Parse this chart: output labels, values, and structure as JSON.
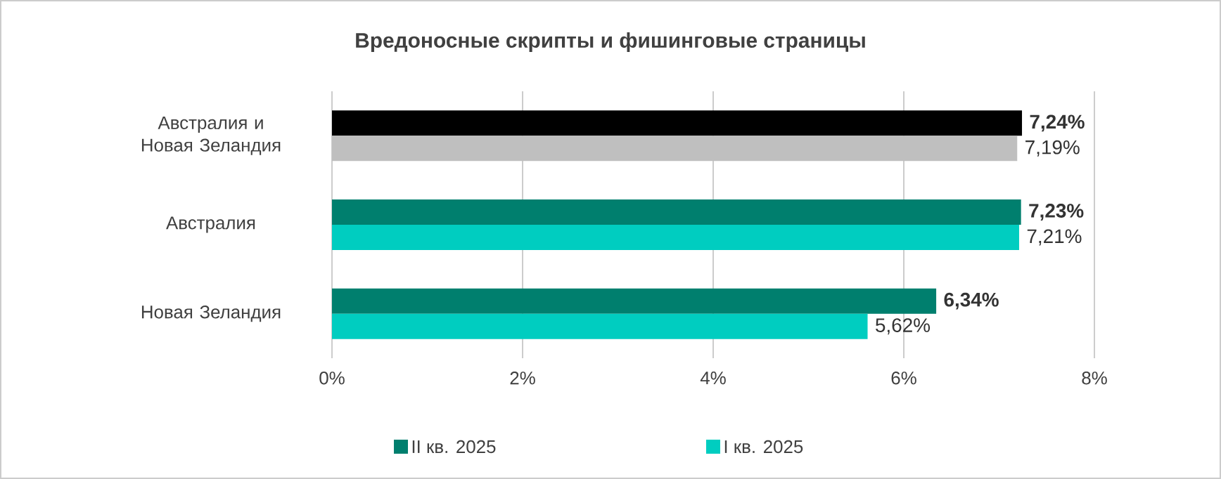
{
  "chart_data": {
    "type": "bar",
    "orientation": "horizontal",
    "title": "Вредоносные скрипты и фишинговые страницы",
    "categories": [
      "Австралия и Новая Зеландия",
      "Австралия",
      "Новая Зеландия"
    ],
    "series": [
      {
        "name": "II кв. 2025",
        "color": "#007f6e",
        "colors": [
          "#000000",
          "#007f6e",
          "#007f6e"
        ],
        "values": [
          7.24,
          7.23,
          6.34
        ],
        "value_labels": [
          "7,24%",
          "7,23%",
          "6,34%"
        ]
      },
      {
        "name": "I кв. 2025",
        "color": "#00cdc0",
        "colors": [
          "#bfbfbf",
          "#00cdc0",
          "#00cdc0"
        ],
        "values": [
          7.19,
          7.21,
          5.62
        ],
        "value_labels": [
          "7,19%",
          "7,21%",
          "5,62%"
        ]
      }
    ],
    "xlim": [
      0,
      8
    ],
    "xticks": [
      {
        "value": 0,
        "label": "0%"
      },
      {
        "value": 2,
        "label": "2%"
      },
      {
        "value": 4,
        "label": "4%"
      },
      {
        "value": 6,
        "label": "6%"
      },
      {
        "value": 8,
        "label": "8%"
      }
    ],
    "grid": "x",
    "legend": "bottom"
  }
}
